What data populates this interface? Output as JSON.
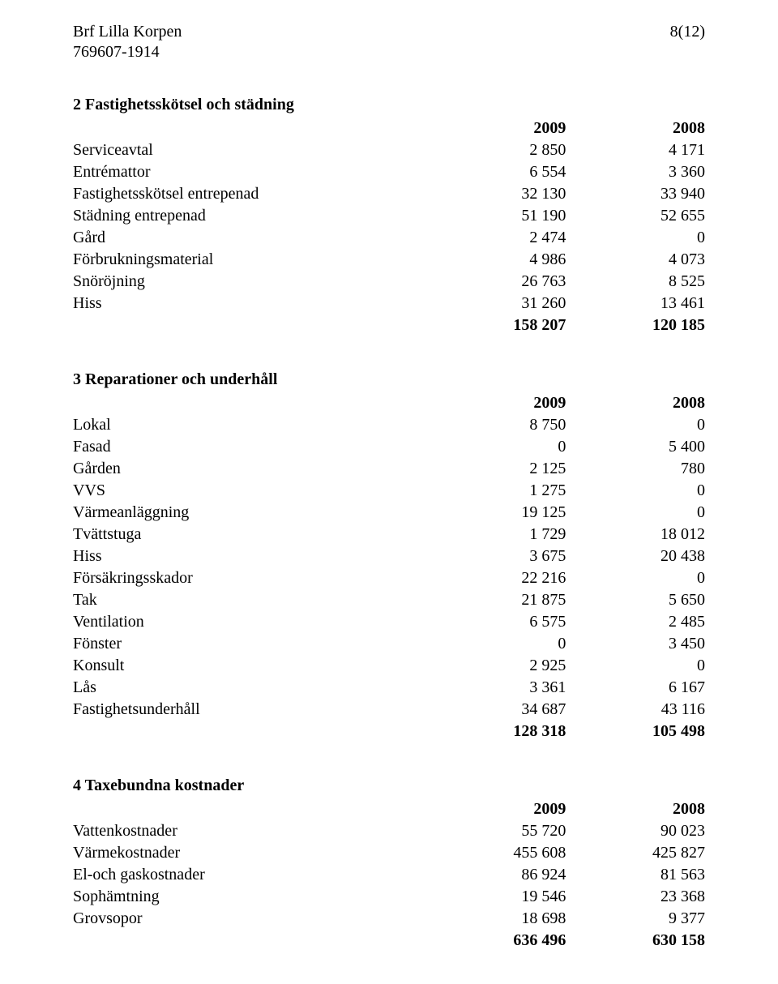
{
  "header": {
    "org_name": "Brf Lilla Korpen",
    "org_id": "769607-1914",
    "page_num": "8(12)"
  },
  "sections": [
    {
      "title": "2 Fastighetsskötsel och städning",
      "year1": "2009",
      "year2": "2008",
      "rows": [
        {
          "label": "Serviceavtal",
          "v1": "2 850",
          "v2": "4 171"
        },
        {
          "label": "Entrémattor",
          "v1": "6 554",
          "v2": "3 360"
        },
        {
          "label": "Fastighetsskötsel entrepenad",
          "v1": "32 130",
          "v2": "33 940"
        },
        {
          "label": "Städning entrepenad",
          "v1": "51 190",
          "v2": "52 655"
        },
        {
          "label": "Gård",
          "v1": "2 474",
          "v2": "0"
        },
        {
          "label": "Förbrukningsmaterial",
          "v1": "4 986",
          "v2": "4 073"
        },
        {
          "label": "Snöröjning",
          "v1": "26 763",
          "v2": "8 525"
        },
        {
          "label": "Hiss",
          "v1": "31 260",
          "v2": "13 461"
        }
      ],
      "total": {
        "v1": "158 207",
        "v2": "120 185"
      }
    },
    {
      "title": "3 Reparationer och underhåll",
      "year1": "2009",
      "year2": "2008",
      "rows": [
        {
          "label": "Lokal",
          "v1": "8 750",
          "v2": "0"
        },
        {
          "label": "Fasad",
          "v1": "0",
          "v2": "5 400"
        },
        {
          "label": "Gården",
          "v1": "2 125",
          "v2": "780"
        },
        {
          "label": "VVS",
          "v1": "1 275",
          "v2": "0"
        },
        {
          "label": "Värmeanläggning",
          "v1": "19 125",
          "v2": "0"
        },
        {
          "label": "Tvättstuga",
          "v1": "1 729",
          "v2": "18 012"
        },
        {
          "label": "Hiss",
          "v1": "3 675",
          "v2": "20 438"
        },
        {
          "label": "Försäkringsskador",
          "v1": "22 216",
          "v2": "0"
        },
        {
          "label": "Tak",
          "v1": "21 875",
          "v2": "5 650"
        },
        {
          "label": "Ventilation",
          "v1": "6 575",
          "v2": "2 485"
        },
        {
          "label": "Fönster",
          "v1": "0",
          "v2": "3 450"
        },
        {
          "label": "Konsult",
          "v1": "2 925",
          "v2": "0"
        },
        {
          "label": "Lås",
          "v1": "3 361",
          "v2": "6 167"
        },
        {
          "label": "Fastighetsunderhåll",
          "v1": "34 687",
          "v2": "43 116"
        }
      ],
      "total": {
        "v1": "128 318",
        "v2": "105 498"
      }
    },
    {
      "title": "4 Taxebundna kostnader",
      "year1": "2009",
      "year2": "2008",
      "rows": [
        {
          "label": "Vattenkostnader",
          "v1": "55 720",
          "v2": "90 023"
        },
        {
          "label": "Värmekostnader",
          "v1": "455 608",
          "v2": "425 827"
        },
        {
          "label": "El-och gaskostnader",
          "v1": "86 924",
          "v2": "81 563"
        },
        {
          "label": "Sophämtning",
          "v1": "19 546",
          "v2": "23 368"
        },
        {
          "label": "Grovsopor",
          "v1": "18 698",
          "v2": "9 377"
        }
      ],
      "total": {
        "v1": "636 496",
        "v2": "630 158"
      }
    }
  ]
}
